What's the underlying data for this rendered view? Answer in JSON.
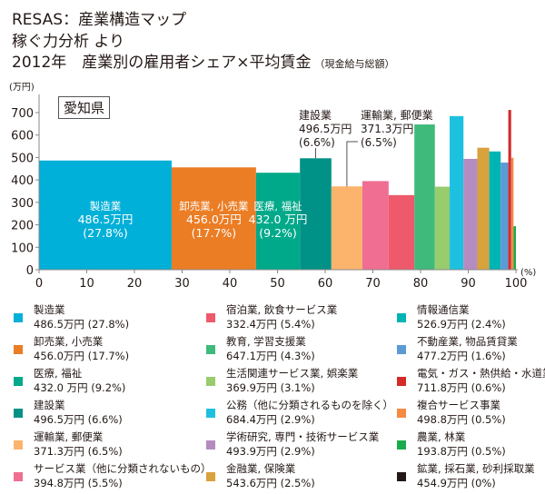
{
  "header": {
    "line1": "RESAS：産業構造マップ",
    "line2": "稼ぐ力分析 より",
    "line3": "2012年　産業別の雇用者シェア×平均賃金",
    "line3_sub": "（現金給与総額）"
  },
  "region_label": "愛知県",
  "chart_data": {
    "type": "bar",
    "subtype": "marimekko",
    "title": "2012年　産業別の雇用者シェア×平均賃金（現金給与総額）",
    "xlabel": "(%)",
    "ylabel": "(万円)",
    "xlim": [
      0,
      100
    ],
    "ylim": [
      0,
      700
    ],
    "xticks": [
      0,
      10,
      20,
      30,
      40,
      50,
      60,
      70,
      80,
      90,
      100
    ],
    "yticks": [
      0,
      100,
      200,
      300,
      400,
      500,
      600,
      700
    ],
    "grid": false,
    "legend_position": "bottom",
    "series": [
      {
        "name": "製造業",
        "wage": 486.5,
        "share": 27.8,
        "color": "#00b0d8",
        "value_text": "486.5万円 (27.8%)",
        "inside_label": [
          "製造業",
          "486.5万円",
          "(27.8%)"
        ]
      },
      {
        "name": "卸売業, 小売業",
        "wage": 456.0,
        "share": 17.7,
        "color": "#eb7d25",
        "value_text": "456.0万円 (17.7%)",
        "inside_label": [
          "卸売業, 小売業",
          "456.0万円",
          "(17.7%)"
        ]
      },
      {
        "name": "医療, 福祉",
        "wage": 432.0,
        "share": 9.2,
        "color": "#00a98a",
        "value_text": "432.0 万円 (9.2%)",
        "inside_label": [
          "医療, 福祉",
          "432.0 万円",
          "(9.2%)"
        ]
      },
      {
        "name": "建設業",
        "wage": 496.5,
        "share": 6.6,
        "color": "#009286",
        "value_text": "496.5万円 (6.6%)",
        "callout": [
          "建設業",
          "496.5万円",
          "(6.6%)"
        ]
      },
      {
        "name": "運輸業, 郵便業",
        "wage": 371.3,
        "share": 6.5,
        "color": "#fcb46c",
        "value_text": "371.3万円 (6.5%)",
        "callout": [
          "運輸業, 郵便業",
          "371.3万円",
          "(6.5%)"
        ]
      },
      {
        "name": "サービス業（他に分類されないもの）",
        "wage": 394.8,
        "share": 5.5,
        "color": "#f06e92",
        "value_text": "394.8万円 (5.5%)"
      },
      {
        "name": "宿泊業, 飲食サービス業",
        "wage": 332.4,
        "share": 5.4,
        "color": "#ee5a6c",
        "value_text": "332.4万円 (5.4%)"
      },
      {
        "name": "教育, 学習支援業",
        "wage": 647.1,
        "share": 4.3,
        "color": "#3fba7a",
        "value_text": "647.1万円 (4.3%)"
      },
      {
        "name": "生活関連サービス業, 娯楽業",
        "wage": 369.9,
        "share": 3.1,
        "color": "#98cc6c",
        "value_text": "369.9万円 (3.1%)"
      },
      {
        "name": "公務（他に分類されるものを除く）",
        "wage": 684.4,
        "share": 2.9,
        "color": "#1ec0e0",
        "value_text": "684.4万円 (2.9%)"
      },
      {
        "name": "学術研究, 専門・技術サービス業",
        "wage": 493.9,
        "share": 2.9,
        "color": "#b48cc0",
        "value_text": "493.9万円 (2.9%)"
      },
      {
        "name": "金融業, 保険業",
        "wage": 543.6,
        "share": 2.5,
        "color": "#d8a23c",
        "value_text": "543.6万円 (2.5%)"
      },
      {
        "name": "情報通信業",
        "wage": 526.9,
        "share": 2.4,
        "color": "#00b4b4",
        "value_text": "526.9万円 (2.4%)"
      },
      {
        "name": "不動産業, 物品賃貸業",
        "wage": 477.2,
        "share": 1.6,
        "color": "#5c9ad4",
        "value_text": "477.2万円 (1.6%)"
      },
      {
        "name": "電気・ガス・熱供給・水道業",
        "wage": 711.8,
        "share": 0.6,
        "color": "#d42a2a",
        "value_text": "711.8万円 (0.6%)"
      },
      {
        "name": "複合サービス事業",
        "wage": 498.8,
        "share": 0.5,
        "color": "#f58a42",
        "value_text": "498.8万円 (0.5%)"
      },
      {
        "name": "農業, 林業",
        "wage": 193.8,
        "share": 0.5,
        "color": "#1aac4c",
        "value_text": "193.8万円 (0.5%)"
      },
      {
        "name": "鉱業, 採石業, 砂利採取業",
        "wage": 454.9,
        "share": 0,
        "color": "#231815",
        "value_text": "454.9万円 (0%)"
      }
    ]
  }
}
